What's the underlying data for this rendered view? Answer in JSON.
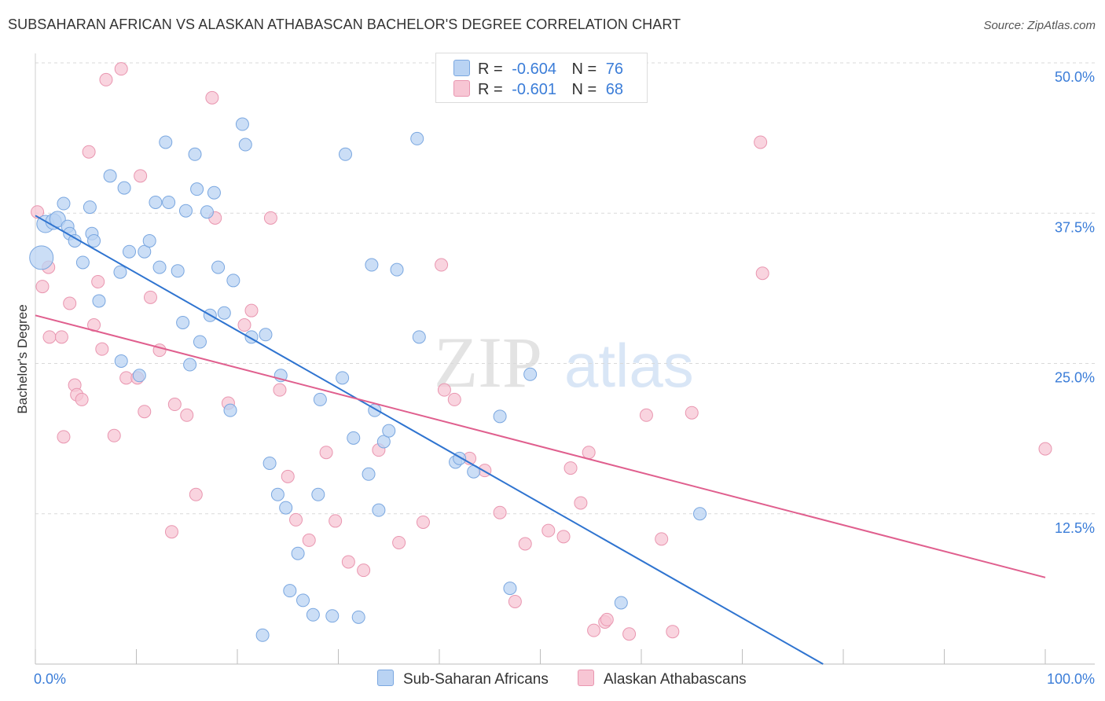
{
  "title": "SUBSAHARAN AFRICAN VS ALASKAN ATHABASCAN BACHELOR'S DEGREE CORRELATION CHART",
  "source": "Source: ZipAtlas.com",
  "watermark": {
    "zip": "ZIP",
    "atlas": "atlas"
  },
  "colors": {
    "blue_fill": "#b9d3f3",
    "blue_stroke": "#7aa7e0",
    "blue_line": "#2f74d0",
    "pink_fill": "#f7c6d4",
    "pink_stroke": "#e996b0",
    "pink_line": "#e05f8e",
    "tick_label": "#3b7dd8",
    "grid": "#d9d9d9"
  },
  "legend_top": [
    {
      "r_label": "R =",
      "r_value": "-0.604",
      "n_label": "N =",
      "n_value": "76",
      "color": "blue"
    },
    {
      "r_label": "R =",
      "r_value": "-0.601",
      "n_label": "N =",
      "n_value": "68",
      "color": "pink"
    }
  ],
  "legend_bottom": [
    {
      "label": "Sub-Saharan Africans",
      "color": "blue"
    },
    {
      "label": "Alaskan Athabascans",
      "color": "pink"
    }
  ],
  "chart_data": {
    "type": "scatter",
    "title": "SUBSAHARAN AFRICAN VS ALASKAN ATHABASCAN BACHELOR'S DEGREE CORRELATION CHART",
    "xlabel": "",
    "ylabel": "Bachelor's Degree",
    "xlim": [
      0,
      100
    ],
    "ylim": [
      0,
      50
    ],
    "x_tick_labels": [
      "0.0%",
      "100.0%"
    ],
    "y_ticks": [
      12.5,
      25.0,
      37.5,
      50.0
    ],
    "y_tick_labels": [
      "12.5%",
      "25.0%",
      "37.5%",
      "50.0%"
    ],
    "grid": true,
    "legend_position": "top-center",
    "series": [
      {
        "name": "Sub-Saharan Africans",
        "color": "blue",
        "trend": {
          "x": [
            0,
            78
          ],
          "y": [
            37.3,
            0
          ]
        },
        "points": [
          [
            0.6,
            33.8
          ],
          [
            1.0,
            36.6
          ],
          [
            1.8,
            36.8
          ],
          [
            2.2,
            37.0
          ],
          [
            2.8,
            38.3
          ],
          [
            3.2,
            36.4
          ],
          [
            3.4,
            35.8
          ],
          [
            3.9,
            35.2
          ],
          [
            4.7,
            33.4
          ],
          [
            5.4,
            38.0
          ],
          [
            5.6,
            35.8
          ],
          [
            5.8,
            35.2
          ],
          [
            6.3,
            30.2
          ],
          [
            7.4,
            40.6
          ],
          [
            8.4,
            32.6
          ],
          [
            8.5,
            25.2
          ],
          [
            8.8,
            39.6
          ],
          [
            9.3,
            34.3
          ],
          [
            10.3,
            24.0
          ],
          [
            10.8,
            34.3
          ],
          [
            11.3,
            35.2
          ],
          [
            11.9,
            38.4
          ],
          [
            12.3,
            33.0
          ],
          [
            12.9,
            43.4
          ],
          [
            13.2,
            38.4
          ],
          [
            14.1,
            32.7
          ],
          [
            14.6,
            28.4
          ],
          [
            14.9,
            37.7
          ],
          [
            15.3,
            24.9
          ],
          [
            15.8,
            42.4
          ],
          [
            16.3,
            26.8
          ],
          [
            17.0,
            37.6
          ],
          [
            17.3,
            29.0
          ],
          [
            17.7,
            39.2
          ],
          [
            18.1,
            33.0
          ],
          [
            18.7,
            29.2
          ],
          [
            19.3,
            21.1
          ],
          [
            19.6,
            31.9
          ],
          [
            20.5,
            44.9
          ],
          [
            20.8,
            43.2
          ],
          [
            21.4,
            27.2
          ],
          [
            22.8,
            27.4
          ],
          [
            23.2,
            16.7
          ],
          [
            24.0,
            14.1
          ],
          [
            24.3,
            24.0
          ],
          [
            24.8,
            13.0
          ],
          [
            25.2,
            6.1
          ],
          [
            26.0,
            9.2
          ],
          [
            26.5,
            5.3
          ],
          [
            27.5,
            4.1
          ],
          [
            28.0,
            14.1
          ],
          [
            28.2,
            22.0
          ],
          [
            29.4,
            4.0
          ],
          [
            30.4,
            23.8
          ],
          [
            30.7,
            42.4
          ],
          [
            31.5,
            18.8
          ],
          [
            32.0,
            3.9
          ],
          [
            33.0,
            15.8
          ],
          [
            33.3,
            33.2
          ],
          [
            33.6,
            21.1
          ],
          [
            34.0,
            12.8
          ],
          [
            34.5,
            18.5
          ],
          [
            35.0,
            19.4
          ],
          [
            35.8,
            32.8
          ],
          [
            37.8,
            43.7
          ],
          [
            38.0,
            27.2
          ],
          [
            41.6,
            16.8
          ],
          [
            42.0,
            17.1
          ],
          [
            43.4,
            16.0
          ],
          [
            46.0,
            20.6
          ],
          [
            47.0,
            6.3
          ],
          [
            49.0,
            24.1
          ],
          [
            58.0,
            5.1
          ],
          [
            65.8,
            12.5
          ],
          [
            22.5,
            2.4
          ],
          [
            16.0,
            39.5
          ]
        ]
      },
      {
        "name": "Alaskan Athabascans",
        "color": "pink",
        "trend": {
          "x": [
            0,
            100
          ],
          "y": [
            29.0,
            7.2
          ]
        },
        "points": [
          [
            0.2,
            37.6
          ],
          [
            0.7,
            31.4
          ],
          [
            1.3,
            33.0
          ],
          [
            1.4,
            27.2
          ],
          [
            2.6,
            27.2
          ],
          [
            2.8,
            18.9
          ],
          [
            3.4,
            30.0
          ],
          [
            3.9,
            23.2
          ],
          [
            4.1,
            22.4
          ],
          [
            4.6,
            22.0
          ],
          [
            5.3,
            42.6
          ],
          [
            5.8,
            28.2
          ],
          [
            6.2,
            31.8
          ],
          [
            6.6,
            26.2
          ],
          [
            7.0,
            48.6
          ],
          [
            7.8,
            19.0
          ],
          [
            8.5,
            49.5
          ],
          [
            9.0,
            23.8
          ],
          [
            10.1,
            23.8
          ],
          [
            10.4,
            40.6
          ],
          [
            10.8,
            21.0
          ],
          [
            11.4,
            30.5
          ],
          [
            12.3,
            26.1
          ],
          [
            13.5,
            11.0
          ],
          [
            13.8,
            21.6
          ],
          [
            15.0,
            20.7
          ],
          [
            15.9,
            14.1
          ],
          [
            17.5,
            47.1
          ],
          [
            17.8,
            37.1
          ],
          [
            19.1,
            21.7
          ],
          [
            20.7,
            28.2
          ],
          [
            21.4,
            29.4
          ],
          [
            23.3,
            37.1
          ],
          [
            24.2,
            22.8
          ],
          [
            25.0,
            15.6
          ],
          [
            25.8,
            12.0
          ],
          [
            27.1,
            10.3
          ],
          [
            28.8,
            17.6
          ],
          [
            29.7,
            11.9
          ],
          [
            31.0,
            8.5
          ],
          [
            32.5,
            7.8
          ],
          [
            34.0,
            17.8
          ],
          [
            36.0,
            10.1
          ],
          [
            38.4,
            11.8
          ],
          [
            40.2,
            33.2
          ],
          [
            40.5,
            22.8
          ],
          [
            41.5,
            22.0
          ],
          [
            43.0,
            17.1
          ],
          [
            44.5,
            16.1
          ],
          [
            46.0,
            12.6
          ],
          [
            47.5,
            5.2
          ],
          [
            48.5,
            10.0
          ],
          [
            50.8,
            11.1
          ],
          [
            52.3,
            10.6
          ],
          [
            53.0,
            16.3
          ],
          [
            54.0,
            13.4
          ],
          [
            54.8,
            17.6
          ],
          [
            55.3,
            2.8
          ],
          [
            56.4,
            3.5
          ],
          [
            56.6,
            3.7
          ],
          [
            58.8,
            2.5
          ],
          [
            60.5,
            20.7
          ],
          [
            62.0,
            10.4
          ],
          [
            63.1,
            2.7
          ],
          [
            65.0,
            20.9
          ],
          [
            71.8,
            43.4
          ],
          [
            72.0,
            32.5
          ],
          [
            100.0,
            17.9
          ]
        ]
      }
    ]
  }
}
